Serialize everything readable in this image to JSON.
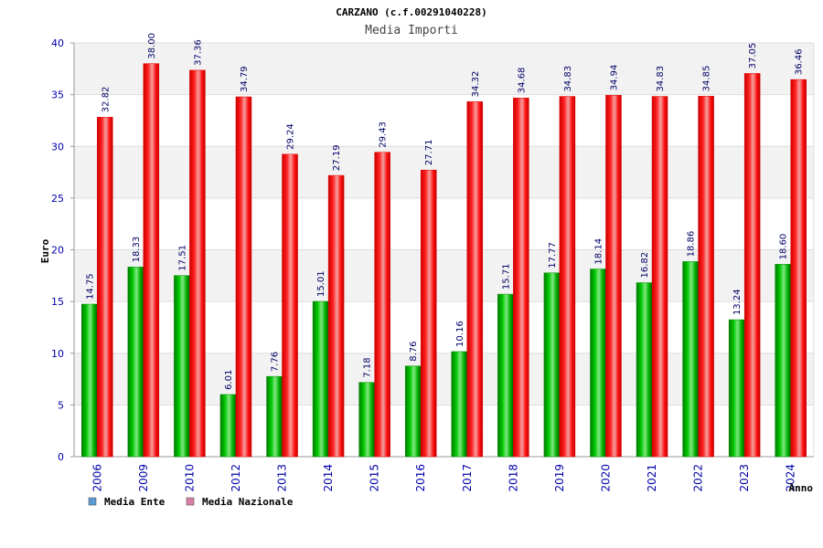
{
  "chart_data": {
    "type": "bar",
    "title": "CARZANO (c.f.00291040228)",
    "subtitle": "Media Importi",
    "ylabel": "Euro",
    "xlabel": "Anno",
    "ylim": [
      0,
      40
    ],
    "yticks": [
      0,
      5,
      10,
      15,
      20,
      25,
      30,
      35,
      40
    ],
    "grid": true,
    "legend_position": "bottom-left",
    "categories": [
      "2006",
      "2009",
      "2010",
      "2012",
      "2013",
      "2014",
      "2015",
      "2016",
      "2017",
      "2018",
      "2019",
      "2020",
      "2021",
      "2022",
      "2023",
      "2024"
    ],
    "series": [
      {
        "name": "Media Ente",
        "color": "#00aa00",
        "legend_color": "#5b9bd5",
        "values": [
          14.75,
          18.33,
          17.51,
          6.01,
          7.76,
          15.01,
          7.18,
          8.76,
          10.16,
          15.71,
          17.77,
          18.14,
          16.82,
          18.86,
          13.24,
          18.6
        ],
        "labels": [
          "14.75",
          "18.33",
          "17.51",
          "6.01",
          "7.76",
          "15.01",
          "7.18",
          "8.76",
          "10.16",
          "15.71",
          "17.77",
          "18.14",
          "16.82",
          "18.86",
          "13.24",
          "18.60"
        ]
      },
      {
        "name": "Media Nazionale",
        "color": "#ee0000",
        "legend_color": "#d97fa8",
        "values": [
          32.82,
          38.0,
          37.36,
          34.79,
          29.24,
          27.19,
          29.43,
          27.71,
          34.32,
          34.68,
          34.83,
          34.94,
          34.83,
          34.85,
          37.05,
          36.46
        ],
        "labels": [
          "32.82",
          "38.00",
          "37.36",
          "34.79",
          "29.24",
          "27.19",
          "29.43",
          "27.71",
          "34.32",
          "34.68",
          "34.83",
          "34.94",
          "34.83",
          "34.85",
          "37.05",
          "36.46"
        ]
      }
    ]
  }
}
